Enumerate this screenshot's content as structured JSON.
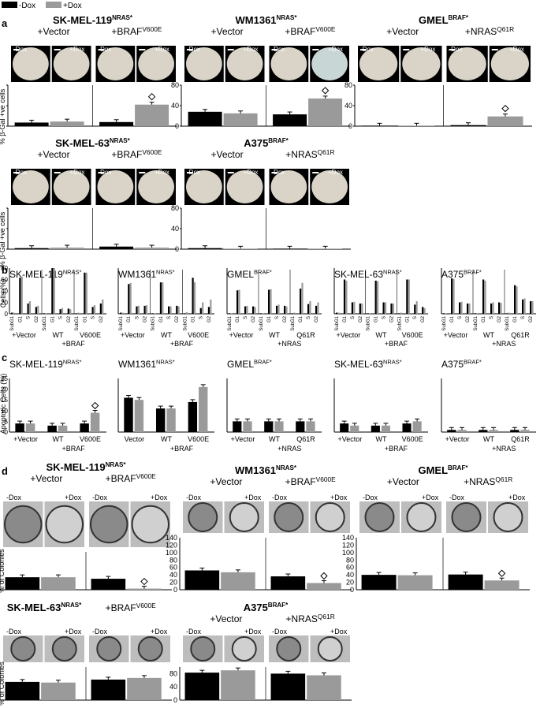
{
  "legend": {
    "items": [
      {
        "label": "-Dox",
        "color": "#000000"
      },
      {
        "label": "+Dox",
        "color": "#9a9a9a"
      }
    ]
  },
  "colors": {
    "minus_dox": "#000000",
    "plus_dox": "#9a9a9a"
  },
  "panel_a": {
    "letter": "a",
    "ylabel": "% β-Gal +ve cells",
    "dox_labels": [
      "-Dox",
      "+Dox"
    ],
    "groups": [
      {
        "name": "SK-MEL-119",
        "sup": "NRAS*",
        "ctrl_label": "+Vector",
        "ctrl_sup": "",
        "exp_label": "+BRAF",
        "exp_sup": "V600E",
        "chart_data": {
          "type": "bar",
          "categories": [
            "+Vector",
            "+BRAF V600E"
          ],
          "series": [
            {
              "name": "-Dox",
              "values": [
                7,
                8
              ]
            },
            {
              "name": "+Dox",
              "values": [
                9,
                42
              ]
            }
          ],
          "ylim": [
            0,
            80
          ]
        },
        "marker": "◇"
      },
      {
        "name": "WM1361",
        "sup": "NRAS*",
        "ctrl_label": "+Vector",
        "ctrl_sup": "",
        "exp_label": "+BRAF",
        "exp_sup": "V600E",
        "chart_data": {
          "type": "bar",
          "categories": [
            "+Vector",
            "+BRAF V600E"
          ],
          "series": [
            {
              "name": "-Dox",
              "values": [
                28,
                23
              ]
            },
            {
              "name": "+Dox",
              "values": [
                25,
                54
              ]
            }
          ],
          "ylim": [
            0,
            80
          ]
        },
        "marker": "◇"
      },
      {
        "name": "GMEL",
        "sup": "BRAF*",
        "ctrl_label": "+Vector",
        "ctrl_sup": "",
        "exp_label": "+NRAS",
        "exp_sup": "Q61R",
        "chart_data": {
          "type": "bar",
          "categories": [
            "+Vector",
            "+NRAS Q61R"
          ],
          "series": [
            {
              "name": "-Dox",
              "values": [
                1,
                2
              ]
            },
            {
              "name": "+Dox",
              "values": [
                1,
                19
              ]
            }
          ],
          "ylim": [
            0,
            80
          ]
        },
        "marker": "◇"
      },
      {
        "name": "SK-MEL-63",
        "sup": "NRAS*",
        "ctrl_label": "+Vector",
        "ctrl_sup": "",
        "exp_label": "+BRAF",
        "exp_sup": "V600E",
        "chart_data": {
          "type": "bar",
          "categories": [
            "+Vector",
            "+BRAF V600E"
          ],
          "series": [
            {
              "name": "-Dox",
              "values": [
                2,
                5
              ]
            },
            {
              "name": "+Dox",
              "values": [
                3,
                3
              ]
            }
          ],
          "ylim": [
            0,
            80
          ]
        },
        "marker": ""
      },
      {
        "name": "A375",
        "sup": "BRAF*",
        "ctrl_label": "+Vector",
        "ctrl_sup": "",
        "exp_label": "+NRAS",
        "exp_sup": "Q61R",
        "chart_data": {
          "type": "bar",
          "categories": [
            "+Vector",
            "+NRAS Q61R"
          ],
          "series": [
            {
              "name": "-Dox",
              "values": [
                2,
                1
              ]
            },
            {
              "name": "+Dox",
              "values": [
                1,
                1
              ]
            }
          ],
          "ylim": [
            0,
            80
          ]
        },
        "marker": ""
      }
    ],
    "yticks": [
      "0",
      "40",
      "80"
    ]
  },
  "panel_b": {
    "letter": "b",
    "ylabel": "Cells (%)",
    "yticks": [
      "0",
      "20",
      "40",
      "60",
      "80"
    ],
    "phase_labels": [
      "SubG1",
      "G1",
      "S",
      "G2"
    ],
    "groups": [
      {
        "name": "SK-MEL-119",
        "sup": "NRAS*",
        "cond_labels": [
          "+Vector",
          "WT",
          "V600E"
        ],
        "bottom_label": "+BRAF",
        "chart_data": {
          "type": "bar",
          "ylim": [
            0,
            80
          ],
          "conditions": [
            {
              "minus": [
                2,
                63,
                18,
                12
              ],
              "plus": [
                2,
                65,
                22,
                14
              ]
            },
            {
              "minus": [
                1,
                80,
                8,
                9
              ],
              "plus": [
                1,
                80,
                10,
                8
              ]
            },
            {
              "minus": [
                1,
                72,
                12,
                18
              ],
              "plus": [
                2,
                72,
                15,
                25
              ]
            }
          ]
        }
      },
      {
        "name": "WM1361",
        "sup": "NRAS*",
        "cond_labels": [
          "+Vector",
          "WT",
          "V600E"
        ],
        "bottom_label": "+BRAF",
        "chart_data": {
          "type": "bar",
          "ylim": [
            0,
            80
          ],
          "conditions": [
            {
              "minus": [
                2,
                52,
                13,
                14
              ],
              "plus": [
                2,
                54,
                14,
                15
              ]
            },
            {
              "minus": [
                1,
                55,
                13,
                14
              ],
              "plus": [
                1,
                55,
                13,
                13
              ]
            },
            {
              "minus": [
                1,
                63,
                10,
                12
              ],
              "plus": [
                3,
                55,
                20,
                25
              ]
            }
          ]
        }
      },
      {
        "name": "GMEL",
        "sup": "BRAF*",
        "cond_labels": [
          "+Vector",
          "WT",
          "Q61R"
        ],
        "bottom_label": "+NRAS",
        "chart_data": {
          "type": "bar",
          "ylim": [
            0,
            80
          ],
          "conditions": [
            {
              "minus": [
                1,
                41,
                13,
                13
              ],
              "plus": [
                1,
                42,
                14,
                12
              ]
            },
            {
              "minus": [
                1,
                42,
                14,
                14
              ],
              "plus": [
                1,
                43,
                16,
                13
              ]
            },
            {
              "minus": [
                1,
                44,
                17,
                14
              ],
              "plus": [
                2,
                54,
                22,
                20
              ]
            }
          ]
        }
      },
      {
        "name": "SK-MEL-63",
        "sup": "NRAS*",
        "cond_labels": [
          "+Vector",
          "WT",
          "V600E"
        ],
        "bottom_label": "+BRAF",
        "chart_data": {
          "type": "bar",
          "ylim": [
            0,
            80
          ],
          "conditions": [
            {
              "minus": [
                2,
                60,
                20,
                18
              ],
              "plus": [
                2,
                58,
                21,
                18
              ]
            },
            {
              "minus": [
                1,
                58,
                20,
                18
              ],
              "plus": [
                1,
                57,
                20,
                18
              ]
            },
            {
              "minus": [
                1,
                60,
                16,
                12
              ],
              "plus": [
                2,
                60,
                22,
                10
              ]
            }
          ]
        }
      },
      {
        "name": "A375",
        "sup": "BRAF*",
        "cond_labels": [
          "+Vector",
          "WT",
          "Q61R"
        ],
        "bottom_label": "+NRAS",
        "chart_data": {
          "type": "bar",
          "ylim": [
            0,
            80
          ],
          "conditions": [
            {
              "minus": [
                1,
                62,
                20,
                18
              ],
              "plus": [
                1,
                61,
                21,
                18
              ]
            },
            {
              "minus": [
                1,
                60,
                18,
                20
              ],
              "plus": [
                1,
                58,
                20,
                19
              ]
            },
            {
              "minus": [
                1,
                50,
                25,
                22
              ],
              "plus": [
                2,
                48,
                27,
                22
              ]
            }
          ]
        }
      }
    ]
  },
  "panel_c": {
    "letter": "c",
    "ylabel": "Apoptotic Cells (%)",
    "yticks": [
      "0",
      "5",
      "10",
      "15",
      "20",
      "25"
    ],
    "groups": [
      {
        "name": "SK-MEL-119",
        "sup": "NRAS*",
        "cond_labels": [
          "+Vector",
          "WT",
          "V600E"
        ],
        "bottom_label": "+BRAF",
        "marker_index": 2,
        "chart_data": {
          "type": "bar",
          "categories": [
            "+Vector",
            "WT",
            "V600E"
          ],
          "ylim": [
            0,
            25
          ],
          "series": [
            {
              "name": "-Dox",
              "values": [
                4,
                3,
                4
              ]
            },
            {
              "name": "+Dox",
              "values": [
                4,
                3,
                9
              ]
            }
          ]
        }
      },
      {
        "name": "WM1361",
        "sup": "NRAS*",
        "cond_labels": [
          "Vector",
          "WT",
          "V600E"
        ],
        "bottom_label": "+BRAF",
        "marker_index": -1,
        "chart_data": {
          "type": "bar",
          "categories": [
            "Vector",
            "WT",
            "V600E"
          ],
          "ylim": [
            0,
            25
          ],
          "series": [
            {
              "name": "-Dox",
              "values": [
                16,
                11,
                14
              ]
            },
            {
              "name": "+Dox",
              "values": [
                15,
                11,
                21
              ]
            }
          ]
        }
      },
      {
        "name": "GMEL",
        "sup": "BRAF*",
        "cond_labels": [
          "+Vector",
          "WT",
          "Q61R"
        ],
        "bottom_label": "+NRAS",
        "marker_index": -1,
        "chart_data": {
          "type": "bar",
          "categories": [
            "+Vector",
            "WT",
            "Q61R"
          ],
          "ylim": [
            0,
            25
          ],
          "series": [
            {
              "name": "-Dox",
              "values": [
                5,
                5,
                5
              ]
            },
            {
              "name": "+Dox",
              "values": [
                5,
                5,
                5
              ]
            }
          ]
        }
      },
      {
        "name": "SK-MEL-63",
        "sup": "NRAS*",
        "cond_labels": [
          "+Vector",
          "WT",
          "V600E"
        ],
        "bottom_label": "+BRAF",
        "marker_index": -1,
        "chart_data": {
          "type": "bar",
          "categories": [
            "+Vector",
            "WT",
            "V600E"
          ],
          "ylim": [
            0,
            25
          ],
          "series": [
            {
              "name": "-Dox",
              "values": [
                4,
                3,
                4
              ]
            },
            {
              "name": "+Dox",
              "values": [
                3,
                3,
                5
              ]
            }
          ]
        }
      },
      {
        "name": "A375",
        "sup": "BRAF*",
        "cond_labels": [
          "+Vector",
          "WT",
          "Q61R"
        ],
        "bottom_label": "+NRAS",
        "marker_index": -1,
        "chart_data": {
          "type": "bar",
          "categories": [
            "+Vector",
            "WT",
            "Q61R"
          ],
          "ylim": [
            0,
            25
          ],
          "series": [
            {
              "name": "-Dox",
              "values": [
                1,
                1,
                1
              ]
            },
            {
              "name": "+Dox",
              "values": [
                1,
                1,
                1
              ]
            }
          ]
        }
      }
    ]
  },
  "panel_d": {
    "letter": "d",
    "ylabel": "% of Colonies",
    "dox_labels": [
      "-Dox",
      "+Dox"
    ],
    "groups": [
      {
        "name": "SK-MEL-119",
        "sup": "NRAS*",
        "ctrl_label": "+Vector",
        "exp_label": "+BRAF",
        "exp_sup": "V600E",
        "yticks": [],
        "marker": "◇",
        "chart_data": {
          "type": "bar",
          "categories": [
            "+Vector",
            "+BRAF V600E"
          ],
          "ylim": [
            0,
            100
          ],
          "series": [
            {
              "name": "-Dox",
              "values": [
                33,
                29
              ]
            },
            {
              "name": "+Dox",
              "values": [
                33,
                3
              ]
            }
          ]
        }
      },
      {
        "name": "WM1361",
        "sup": "NRAS*",
        "ctrl_label": "+Vector",
        "exp_label": "+BRAF",
        "exp_sup": "V600E",
        "yticks": [
          "0",
          "20",
          "40",
          "60",
          "80",
          "100",
          "120",
          "140"
        ],
        "marker": "◇",
        "chart_data": {
          "type": "bar",
          "categories": [
            "+Vector",
            "+BRAF V600E"
          ],
          "ylim": [
            0,
            140
          ],
          "series": [
            {
              "name": "-Dox",
              "values": [
                52,
                36
              ]
            },
            {
              "name": "+Dox",
              "values": [
                47,
                18
              ]
            }
          ]
        }
      },
      {
        "name": "GMEL",
        "sup": "BRAF*",
        "ctrl_label": "+Vector",
        "exp_label": "+NRAS",
        "exp_sup": "Q61R",
        "yticks": [
          "0",
          "20",
          "40",
          "60",
          "80",
          "100",
          "120",
          "140"
        ],
        "marker": "◇",
        "chart_data": {
          "type": "bar",
          "categories": [
            "+Vector",
            "+NRAS Q61R"
          ],
          "ylim": [
            0,
            140
          ],
          "series": [
            {
              "name": "-Dox",
              "values": [
                40,
                41
              ]
            },
            {
              "name": "+Dox",
              "values": [
                39,
                25
              ]
            }
          ]
        }
      },
      {
        "name": "SK-MEL-63",
        "sup": "NRAS*",
        "ctrl_label": "",
        "exp_label": "+BRAF",
        "exp_sup": "V600E",
        "yticks": [],
        "marker": "",
        "chart_data": {
          "type": "bar",
          "categories": [
            "",
            "+BRAF V600E"
          ],
          "ylim": [
            0,
            100
          ],
          "series": [
            {
              "name": "-Dox",
              "values": [
                55,
                62
              ]
            },
            {
              "name": "+Dox",
              "values": [
                53,
                67
              ]
            }
          ]
        }
      },
      {
        "name": "A375",
        "sup": "BRAF*",
        "ctrl_label": "+Vector",
        "exp_label": "+NRAS",
        "exp_sup": "Q61R",
        "yticks": [
          "0",
          "40",
          "80"
        ],
        "marker": "",
        "chart_data": {
          "type": "bar",
          "categories": [
            "+Vector",
            "+NRAS Q61R"
          ],
          "ylim": [
            0,
            100
          ],
          "series": [
            {
              "name": "-Dox",
              "values": [
                83,
                80
              ]
            },
            {
              "name": "+Dox",
              "values": [
                90,
                75
              ]
            }
          ]
        }
      }
    ]
  }
}
